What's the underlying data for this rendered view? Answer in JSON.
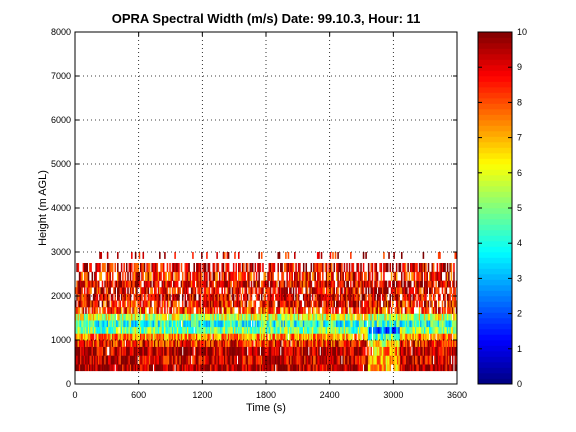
{
  "chart_data": {
    "type": "heatmap",
    "title": "OPRA Spectral Width (m/s)  Date: 99.10.3, Hour: 11",
    "xlabel": "Time (s)",
    "ylabel": "Height (m AGL)",
    "xlim": [
      0,
      3600
    ],
    "ylim": [
      0,
      8000
    ],
    "xticks": [
      "0",
      "600",
      "1200",
      "1800",
      "2400",
      "3000",
      "3600"
    ],
    "yticks": [
      "0",
      "1000",
      "2000",
      "3000",
      "4000",
      "5000",
      "6000",
      "7000",
      "8000"
    ],
    "grid": true,
    "colorbar": {
      "range": [
        0,
        10
      ],
      "ticks": [
        "0",
        "1",
        "2",
        "3",
        "4",
        "5",
        "6",
        "7",
        "8",
        "9",
        "10"
      ],
      "colormap": "jet"
    },
    "bands": [
      {
        "y0": 300,
        "y1": 450,
        "mean": 9.6
      },
      {
        "y0": 450,
        "y1": 650,
        "mean": 9.3
      },
      {
        "y0": 650,
        "y1": 850,
        "mean": 9.5
      },
      {
        "y0": 850,
        "y1": 1000,
        "mean": 8.6
      },
      {
        "y0": 1000,
        "y1": 1150,
        "mean": 7.2
      },
      {
        "y0": 1150,
        "y1": 1300,
        "mean": 5.0
      },
      {
        "y0": 1300,
        "y1": 1450,
        "mean": 4.2
      },
      {
        "y0": 1450,
        "y1": 1600,
        "mean": 5.8
      },
      {
        "y0": 1600,
        "y1": 1750,
        "mean": 8.2
      },
      {
        "y0": 1750,
        "y1": 1900,
        "mean": 8.8
      },
      {
        "y0": 1900,
        "y1": 2050,
        "mean": 9.1
      },
      {
        "y0": 2050,
        "y1": 2200,
        "mean": 8.9
      },
      {
        "y0": 2200,
        "y1": 2350,
        "mean": 9.0
      },
      {
        "y0": 2350,
        "y1": 2550,
        "mean": 8.6
      },
      {
        "y0": 2550,
        "y1": 2750,
        "mean": 9.2
      },
      {
        "y0": 2850,
        "y1": 3000,
        "mean": 9.4
      }
    ]
  }
}
